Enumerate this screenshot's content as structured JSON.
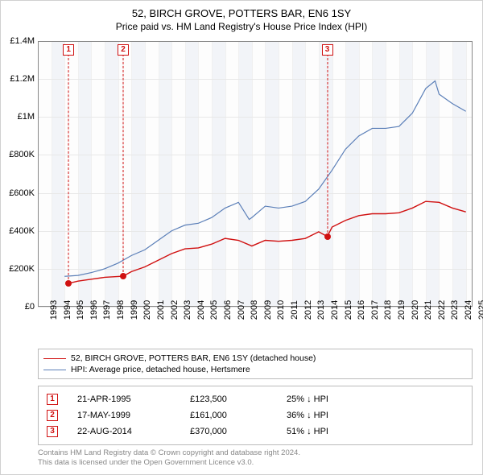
{
  "title": {
    "line1": "52, BIRCH GROVE, POTTERS BAR, EN6 1SY",
    "line2": "Price paid vs. HM Land Registry's House Price Index (HPI)"
  },
  "chart": {
    "type": "line",
    "background_color": "#fdfdfd",
    "grid_color": "#e8e8e8",
    "border_color": "#888888",
    "x": {
      "min": 1993,
      "max": 2025.5,
      "ticks": [
        1993,
        1994,
        1995,
        1996,
        1997,
        1998,
        1999,
        2000,
        2001,
        2002,
        2003,
        2004,
        2005,
        2006,
        2007,
        2008,
        2009,
        2010,
        2011,
        2012,
        2013,
        2014,
        2015,
        2016,
        2017,
        2018,
        2019,
        2020,
        2021,
        2022,
        2023,
        2024,
        2025
      ],
      "band_color": "#f2f4f8"
    },
    "y": {
      "min": 0,
      "max": 1400000,
      "ticks": [
        0,
        200000,
        400000,
        600000,
        800000,
        1000000,
        1200000,
        1400000
      ],
      "tick_labels": [
        "£0",
        "£200K",
        "£400K",
        "£600K",
        "£800K",
        "£1M",
        "£1.2M",
        "£1.4M"
      ],
      "label_fontsize": 11
    },
    "series": [
      {
        "name": "property",
        "label": "52, BIRCH GROVE, POTTERS BAR, EN6 1SY (detached house)",
        "color": "#d01010",
        "width": 1.4,
        "points": [
          [
            1995.3,
            123500
          ],
          [
            1996,
            135000
          ],
          [
            1997,
            145000
          ],
          [
            1998,
            155000
          ],
          [
            1999.38,
            161000
          ],
          [
            2000,
            185000
          ],
          [
            2001,
            210000
          ],
          [
            2002,
            245000
          ],
          [
            2003,
            280000
          ],
          [
            2004,
            305000
          ],
          [
            2005,
            310000
          ],
          [
            2006,
            330000
          ],
          [
            2007,
            360000
          ],
          [
            2008,
            350000
          ],
          [
            2009,
            320000
          ],
          [
            2010,
            350000
          ],
          [
            2011,
            345000
          ],
          [
            2012,
            350000
          ],
          [
            2013,
            360000
          ],
          [
            2014,
            395000
          ],
          [
            2014.64,
            370000
          ],
          [
            2015,
            420000
          ],
          [
            2016,
            455000
          ],
          [
            2017,
            480000
          ],
          [
            2018,
            490000
          ],
          [
            2019,
            490000
          ],
          [
            2020,
            495000
          ],
          [
            2021,
            520000
          ],
          [
            2022,
            555000
          ],
          [
            2023,
            550000
          ],
          [
            2024,
            520000
          ],
          [
            2025,
            500000
          ]
        ]
      },
      {
        "name": "hpi",
        "label": "HPI: Average price, detached house, Hertsmere",
        "color": "#5b7fb8",
        "width": 1.2,
        "points": [
          [
            1995,
            160000
          ],
          [
            1996,
            165000
          ],
          [
            1997,
            180000
          ],
          [
            1998,
            200000
          ],
          [
            1999,
            230000
          ],
          [
            2000,
            270000
          ],
          [
            2001,
            300000
          ],
          [
            2002,
            350000
          ],
          [
            2003,
            400000
          ],
          [
            2004,
            430000
          ],
          [
            2005,
            440000
          ],
          [
            2006,
            470000
          ],
          [
            2007,
            520000
          ],
          [
            2008,
            550000
          ],
          [
            2008.8,
            460000
          ],
          [
            2009,
            470000
          ],
          [
            2010,
            530000
          ],
          [
            2011,
            520000
          ],
          [
            2012,
            530000
          ],
          [
            2013,
            555000
          ],
          [
            2014,
            620000
          ],
          [
            2015,
            720000
          ],
          [
            2016,
            830000
          ],
          [
            2017,
            900000
          ],
          [
            2018,
            940000
          ],
          [
            2019,
            940000
          ],
          [
            2020,
            950000
          ],
          [
            2021,
            1020000
          ],
          [
            2022,
            1150000
          ],
          [
            2022.7,
            1190000
          ],
          [
            2023,
            1120000
          ],
          [
            2024,
            1070000
          ],
          [
            2025,
            1030000
          ]
        ]
      }
    ],
    "markers": [
      {
        "n": "1",
        "year": 1995.3,
        "price": 123500
      },
      {
        "n": "2",
        "year": 1999.38,
        "price": 161000
      },
      {
        "n": "3",
        "year": 2014.64,
        "price": 370000
      }
    ],
    "marker_box_color": "#d01010",
    "marker_dot_color": "#d01010"
  },
  "legend": {
    "items": [
      {
        "color": "#d01010",
        "label": "52, BIRCH GROVE, POTTERS BAR, EN6 1SY (detached house)"
      },
      {
        "color": "#5b7fb8",
        "label": "HPI: Average price, detached house, Hertsmere"
      }
    ]
  },
  "sales": [
    {
      "n": "1",
      "date": "21-APR-1995",
      "price": "£123,500",
      "delta": "25% ↓ HPI"
    },
    {
      "n": "2",
      "date": "17-MAY-1999",
      "price": "£161,000",
      "delta": "36% ↓ HPI"
    },
    {
      "n": "3",
      "date": "22-AUG-2014",
      "price": "£370,000",
      "delta": "51% ↓ HPI"
    }
  ],
  "attribution": {
    "line1": "Contains HM Land Registry data © Crown copyright and database right 2024.",
    "line2": "This data is licensed under the Open Government Licence v3.0."
  }
}
